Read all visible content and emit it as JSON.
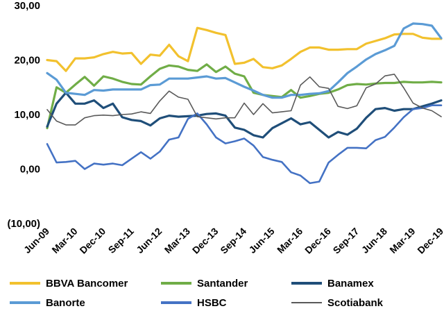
{
  "chart_data": {
    "type": "line",
    "ylim": [
      -10,
      30
    ],
    "yticks": [
      "30,00",
      "20,00",
      "10,00",
      "0,00",
      "(10,00)"
    ],
    "ytick_values": [
      30,
      20,
      10,
      0,
      -10
    ],
    "xticks": [
      "Jun-09",
      "Mar-10",
      "Dec-10",
      "Sep-11",
      "Jun-12",
      "Mar-13",
      "Dec-13",
      "Sep-14",
      "Jun-15",
      "Mar-16",
      "Dec-16",
      "Sep-17",
      "Jun-18",
      "Mar-19",
      "Dec-19"
    ],
    "xtick_index": [
      0,
      3,
      6,
      9,
      12,
      15,
      18,
      21,
      24,
      27,
      30,
      33,
      36,
      39,
      42
    ],
    "n_points": 43,
    "grid": false,
    "legend_position": "bottom",
    "series": [
      {
        "name": "BBVA Bancomer",
        "color": "#f2c12e",
        "values": [
          20.0,
          19.8,
          18.0,
          20.3,
          20.3,
          20.5,
          21.1,
          21.5,
          21.2,
          21.3,
          19.3,
          21.0,
          20.8,
          22.8,
          20.7,
          19.8,
          25.9,
          25.5,
          25.0,
          24.6,
          19.3,
          19.5,
          20.2,
          18.7,
          18.5,
          19.0,
          20.2,
          21.5,
          22.3,
          22.3,
          21.9,
          21.9,
          22.0,
          22.0,
          23.0,
          23.5,
          24.0,
          24.7,
          24.8,
          24.8,
          24.1,
          23.9,
          23.9
        ]
      },
      {
        "name": "Santander",
        "color": "#70ad47",
        "values": [
          7.5,
          15.0,
          14.0,
          15.5,
          16.9,
          15.3,
          17.0,
          16.6,
          16.0,
          15.6,
          15.5,
          17.0,
          18.4,
          19.0,
          18.8,
          18.2,
          18.0,
          19.2,
          17.8,
          18.8,
          17.5,
          17.0,
          14.0,
          13.6,
          13.4,
          13.2,
          14.5,
          13.1,
          13.4,
          13.8,
          14.0,
          14.6,
          15.4,
          15.6,
          15.5,
          15.7,
          15.8,
          15.8,
          16.0,
          15.9,
          15.9,
          16.0,
          15.9
        ]
      },
      {
        "name": "Banamex",
        "color": "#1f4e79",
        "values": [
          7.8,
          12.0,
          14.0,
          12.0,
          12.0,
          12.6,
          11.2,
          12.0,
          9.5,
          9.0,
          8.8,
          8.0,
          9.3,
          9.8,
          9.6,
          9.7,
          9.8,
          10.1,
          10.2,
          9.8,
          7.6,
          7.2,
          6.2,
          5.8,
          7.5,
          8.4,
          9.3,
          8.2,
          8.6,
          7.2,
          5.8,
          6.8,
          6.3,
          7.4,
          9.4,
          11.0,
          11.2,
          10.7,
          11.0,
          11.0,
          11.5,
          12.0,
          12.6
        ]
      },
      {
        "name": "Banorte",
        "color": "#5b9bd5",
        "values": [
          17.6,
          16.4,
          14.0,
          13.8,
          13.6,
          14.5,
          14.4,
          14.6,
          14.6,
          14.6,
          14.6,
          15.4,
          15.5,
          16.6,
          16.6,
          16.6,
          16.8,
          17.0,
          16.6,
          16.7,
          15.9,
          15.1,
          14.4,
          13.6,
          13.1,
          13.1,
          13.6,
          13.6,
          13.8,
          13.9,
          14.3,
          15.9,
          17.6,
          18.8,
          20.1,
          21.1,
          21.8,
          22.6,
          25.8,
          26.7,
          26.6,
          26.3,
          24.0
        ]
      },
      {
        "name": "HSBC",
        "color": "#4472c4",
        "values": [
          4.6,
          1.2,
          1.3,
          1.5,
          0.0,
          1.0,
          0.8,
          1.0,
          0.7,
          1.9,
          3.1,
          1.9,
          3.2,
          5.4,
          5.8,
          9.2,
          10.2,
          8.2,
          5.8,
          4.7,
          5.1,
          5.6,
          4.3,
          2.2,
          1.7,
          1.3,
          -0.6,
          -1.2,
          -2.6,
          -2.3,
          1.2,
          2.6,
          3.9,
          3.9,
          3.8,
          5.3,
          5.9,
          7.6,
          9.5,
          11.0,
          11.2,
          11.7,
          11.7
        ]
      },
      {
        "name": "Scotiabank",
        "color": "#595959",
        "values": [
          10.9,
          8.8,
          8.1,
          8.1,
          9.4,
          9.8,
          9.9,
          9.8,
          10.0,
          10.1,
          10.5,
          10.2,
          12.5,
          14.3,
          13.2,
          12.8,
          9.6,
          9.4,
          9.2,
          9.4,
          9.4,
          12.1,
          10.0,
          12.0,
          10.3,
          10.5,
          10.7,
          15.4,
          16.9,
          15.1,
          14.8,
          11.5,
          11.1,
          11.6,
          14.9,
          15.6,
          17.1,
          17.4,
          14.9,
          12.1,
          11.2,
          10.7,
          9.6
        ]
      }
    ]
  }
}
